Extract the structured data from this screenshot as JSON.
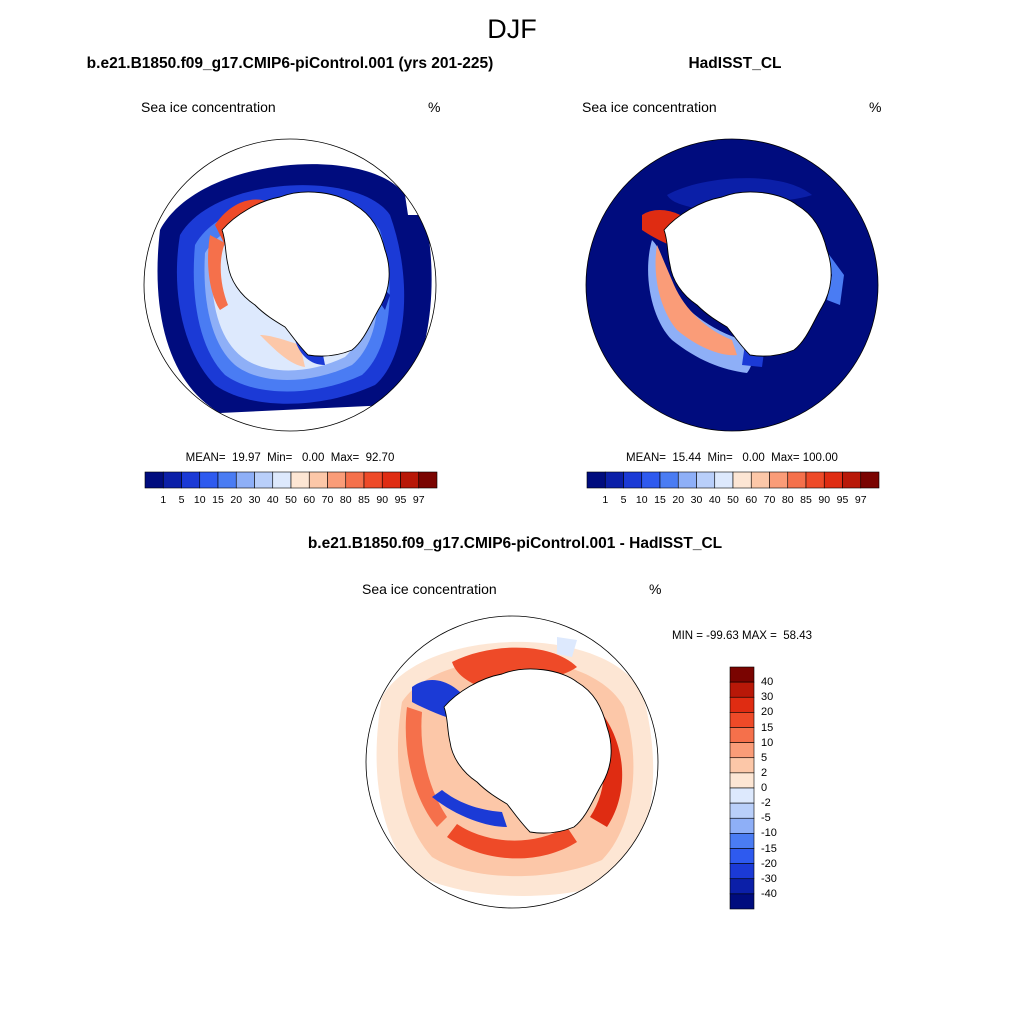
{
  "page_title": "DJF",
  "colors": {
    "abs_scale": [
      "#000c7e",
      "#0b1fa8",
      "#1b3ad6",
      "#2e5aef",
      "#4a7cf3",
      "#8eaff7",
      "#b9cffa",
      "#dde9fd",
      "#fde6d4",
      "#fcc7a8",
      "#fa9c78",
      "#f5704b",
      "#ee4a28",
      "#df2c12",
      "#b81808",
      "#7a0401"
    ],
    "diff_scale": [
      "#000c7e",
      "#0b1fa8",
      "#1b3ad6",
      "#2e5aef",
      "#4a7cf3",
      "#8eaff7",
      "#b9cffa",
      "#dde9fd",
      "#fde6d4",
      "#fcc7a8",
      "#fa9c78",
      "#f5704b",
      "#ee4a28",
      "#df2c12",
      "#b81808",
      "#7a0401"
    ],
    "land": "#ffffff",
    "coast": "#000000"
  },
  "chart_data": [
    {
      "type": "heatmap",
      "projection": "south-polar-stereographic",
      "title": "b.e21.B1850.f09_g17.CMIP6-piControl.001 (yrs 201-225)",
      "variable": "Sea ice concentration",
      "units": "%",
      "stats_text": "MEAN=  19.97  Min=   0.00  Max=  92.70",
      "stats": {
        "mean": 19.97,
        "min": 0.0,
        "max": 92.7
      },
      "colorbar_levels": [
        "1",
        "5",
        "10",
        "15",
        "20",
        "30",
        "40",
        "50",
        "60",
        "70",
        "80",
        "85",
        "90",
        "95",
        "97"
      ]
    },
    {
      "type": "heatmap",
      "projection": "south-polar-stereographic",
      "title": "HadISST_CL",
      "variable": "Sea ice concentration",
      "units": "%",
      "stats_text": "MEAN=  15.44  Min=   0.00  Max= 100.00",
      "stats": {
        "mean": 15.44,
        "min": 0.0,
        "max": 100.0
      },
      "colorbar_levels": [
        "1",
        "5",
        "10",
        "15",
        "20",
        "30",
        "40",
        "50",
        "60",
        "70",
        "80",
        "85",
        "90",
        "95",
        "97"
      ]
    },
    {
      "type": "heatmap",
      "projection": "south-polar-stereographic",
      "title": "b.e21.B1850.f09_g17.CMIP6-piControl.001 - HadISST_CL",
      "variable": "Sea ice concentration",
      "units": "%",
      "stats_text": "MIN = -99.63 MAX =  58.43",
      "stats": {
        "min": -99.63,
        "max": 58.43
      },
      "colorbar_levels": [
        "40",
        "30",
        "20",
        "15",
        "10",
        "5",
        "2",
        "0",
        "-2",
        "-5",
        "-10",
        "-15",
        "-20",
        "-30",
        "-40"
      ]
    }
  ]
}
